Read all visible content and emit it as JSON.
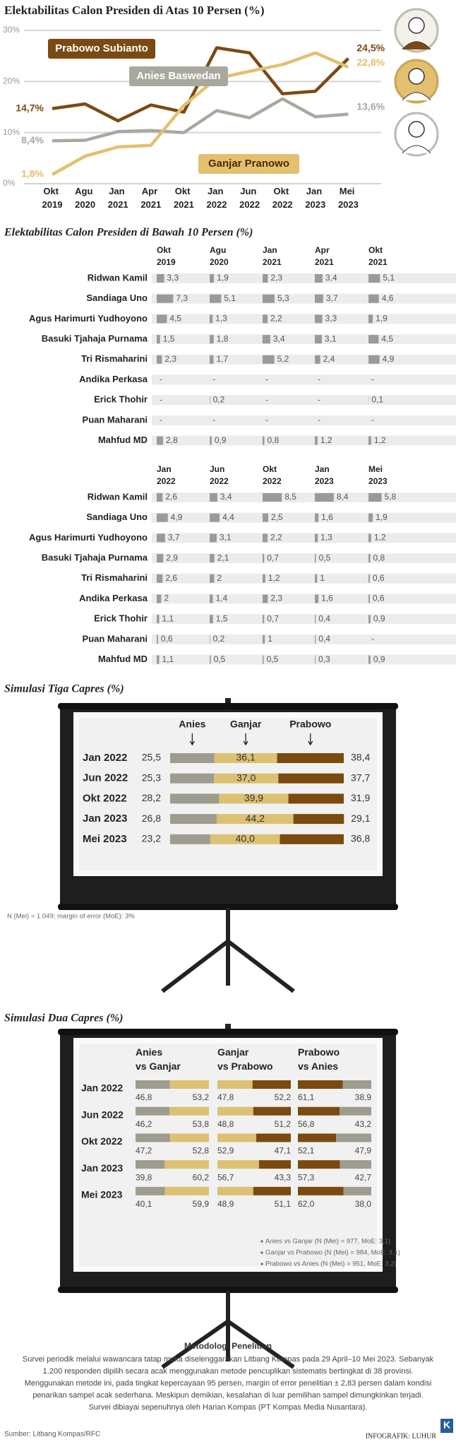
{
  "chart_data": [
    {
      "type": "line",
      "title": "Elektabilitas Calon Presiden di Atas 10 Persen (%)",
      "categories": [
        "Okt 2019",
        "Agu 2020",
        "Jan 2021",
        "Apr 2021",
        "Okt 2021",
        "Jan 2022",
        "Jun 2022",
        "Okt 2022",
        "Jan 2023",
        "Mei 2023"
      ],
      "ylim": [
        0,
        30
      ],
      "yticks": [
        {
          "value": 0,
          "label": "0%"
        },
        {
          "value": 10,
          "label": "10%"
        },
        {
          "value": 20,
          "label": "20%"
        },
        {
          "value": 30,
          "label": "30%"
        }
      ],
      "grid": true,
      "series": [
        {
          "name": "Prabowo Subianto",
          "color": "#7b4a12",
          "values": [
            14.7,
            15.6,
            12.3,
            15.4,
            14.0,
            26.6,
            25.6,
            17.6,
            18.1,
            24.5
          ],
          "value_labels": [
            "14,7%",
            null,
            null,
            null,
            null,
            null,
            null,
            null,
            null,
            "24,5%"
          ]
        },
        {
          "name": "Anies Baswedan",
          "color": "#a9a89f",
          "values": [
            8.4,
            8.5,
            10.2,
            10.4,
            10.0,
            14.3,
            12.9,
            16.6,
            13.1,
            13.6
          ],
          "value_labels": [
            "8,4%",
            null,
            null,
            null,
            null,
            null,
            null,
            null,
            null,
            "13,6%"
          ]
        },
        {
          "name": "Ganjar Pranowo",
          "color": "#e3c070",
          "values": [
            1.8,
            5.4,
            7.2,
            7.5,
            15.3,
            20.6,
            22.0,
            23.3,
            25.6,
            22.8
          ],
          "value_labels": [
            "1,8%",
            null,
            null,
            null,
            null,
            null,
            null,
            null,
            null,
            "22,8%"
          ]
        }
      ]
    },
    {
      "type": "bar_table",
      "title": "Elektabilitas Calon Presiden di Bawah 10 Persen (%)",
      "color": "#9a9a96",
      "categories": [
        "Okt 2019",
        "Agu 2020",
        "Jan 2021",
        "Apr 2021",
        "Okt 2021"
      ],
      "series": [
        {
          "name": "Ridwan Kamil",
          "values": [
            3.3,
            1.9,
            2.3,
            3.4,
            5.1
          ],
          "value_labels": [
            "3,3",
            "1,9",
            "2,3",
            "3,4",
            "5,1"
          ]
        },
        {
          "name": "Sandiaga Uno",
          "values": [
            7.3,
            5.1,
            5.3,
            3.7,
            4.6
          ],
          "value_labels": [
            "7,3",
            "5,1",
            "5,3",
            "3,7",
            "4,6"
          ]
        },
        {
          "name": "Agus Harimurti Yudhoyono",
          "values": [
            4.5,
            1.3,
            2.2,
            3.3,
            1.9
          ],
          "value_labels": [
            "4,5",
            "1,3",
            "2,2",
            "3,3",
            "1,9"
          ]
        },
        {
          "name": "Basuki Tjahaja Purnama",
          "values": [
            1.5,
            1.8,
            3.4,
            3.1,
            4.5
          ],
          "value_labels": [
            "1,5",
            "1,8",
            "3,4",
            "3,1",
            "4,5"
          ]
        },
        {
          "name": "Tri Rismaharini",
          "values": [
            2.3,
            1.7,
            5.2,
            2.4,
            4.9
          ],
          "value_labels": [
            "2,3",
            "1,7",
            "5,2",
            "2,4",
            "4,9"
          ]
        },
        {
          "name": "Andika Perkasa",
          "values": [
            null,
            null,
            null,
            null,
            null
          ],
          "value_labels": [
            "-",
            "-",
            "-",
            "-",
            "-"
          ]
        },
        {
          "name": "Erick Thohir",
          "values": [
            null,
            0.2,
            null,
            null,
            0.1
          ],
          "value_labels": [
            "-",
            "0,2",
            "-",
            "-",
            "0,1"
          ]
        },
        {
          "name": "Puan Maharani",
          "values": [
            null,
            null,
            null,
            null,
            null
          ],
          "value_labels": [
            "-",
            "-",
            "-",
            "-",
            "-"
          ]
        },
        {
          "name": "Mahfud MD",
          "values": [
            2.8,
            0.9,
            0.8,
            1.2,
            1.2
          ],
          "value_labels": [
            "2,8",
            "0,9",
            "0,8",
            "1,2",
            "1,2"
          ]
        }
      ]
    },
    {
      "type": "bar_table",
      "color": "#9a9a96",
      "categories": [
        "Jan 2022",
        "Jun 2022",
        "Okt 2022",
        "Jan 2023",
        "Mei 2023"
      ],
      "series": [
        {
          "name": "Ridwan Kamil",
          "values": [
            2.6,
            3.4,
            8.5,
            8.4,
            5.8
          ],
          "value_labels": [
            "2,6",
            "3,4",
            "8,5",
            "8,4",
            "5,8"
          ]
        },
        {
          "name": "Sandiaga Uno",
          "values": [
            4.9,
            4.4,
            2.5,
            1.6,
            1.9
          ],
          "value_labels": [
            "4,9",
            "4,4",
            "2,5",
            "1,6",
            "1,9"
          ]
        },
        {
          "name": "Agus Harimurti Yudhoyono",
          "values": [
            3.7,
            3.1,
            2.2,
            1.3,
            1.2
          ],
          "value_labels": [
            "3,7",
            "3,1",
            "2,2",
            "1,3",
            "1,2"
          ]
        },
        {
          "name": "Basuki Tjahaja Purnama",
          "values": [
            2.9,
            2.1,
            0.7,
            0.5,
            0.8
          ],
          "value_labels": [
            "2,9",
            "2,1",
            "0,7",
            "0,5",
            "0,8"
          ]
        },
        {
          "name": "Tri Rismaharini",
          "values": [
            2.6,
            2,
            1.2,
            1,
            0.6
          ],
          "value_labels": [
            "2,6",
            "2",
            "1,2",
            "1",
            "0,6"
          ]
        },
        {
          "name": "Andika Perkasa",
          "values": [
            2,
            1.4,
            2.3,
            1.6,
            0.6
          ],
          "value_labels": [
            "2",
            "1,4",
            "2,3",
            "1,6",
            "0,6"
          ]
        },
        {
          "name": "Erick Thohir",
          "values": [
            1.1,
            1.5,
            0.7,
            0.4,
            0.9
          ],
          "value_labels": [
            "1,1",
            "1,5",
            "0,7",
            "0,4",
            "0,9"
          ]
        },
        {
          "name": "Puan Maharani",
          "values": [
            0.6,
            0.2,
            1,
            0.4,
            null
          ],
          "value_labels": [
            "0,6",
            "0,2",
            "1",
            "0,4",
            "-"
          ]
        },
        {
          "name": "Mahfud MD",
          "values": [
            1.1,
            0.5,
            0.5,
            0.3,
            0.9
          ],
          "value_labels": [
            "1,1",
            "0,5",
            "0,5",
            "0,3",
            "0,9"
          ]
        }
      ]
    },
    {
      "type": "stacked_bar",
      "title": "Simulasi Tiga Capres (%)",
      "categories": [
        "Jan 2022",
        "Jun 2022",
        "Okt 2022",
        "Jan 2023",
        "Mei 2023"
      ],
      "series": [
        {
          "name": "Anies",
          "color": "#9e9c8f",
          "values": [
            25.5,
            25.3,
            28.2,
            26.8,
            23.2
          ],
          "value_labels": [
            "25,5",
            "25,3",
            "28,2",
            "26,8",
            "23,2"
          ]
        },
        {
          "name": "Ganjar",
          "color": "#dcc173",
          "values": [
            36.1,
            37.0,
            39.9,
            44.2,
            40.0
          ],
          "value_labels": [
            "36,1",
            "37,0",
            "39,9",
            "44,2",
            "40,0"
          ]
        },
        {
          "name": "Prabowo",
          "color": "#7a4a0e",
          "values": [
            38.4,
            37.7,
            31.9,
            29.1,
            36.8
          ],
          "value_labels": [
            "38,4",
            "37,7",
            "31,9",
            "29,1",
            "36,8"
          ]
        }
      ],
      "note": "N (Mei) = 1.049; margin of error (MoE): 3%"
    },
    {
      "type": "paired_bar",
      "title": "Simulasi Dua Capres (%)",
      "categories": [
        "Jan 2022",
        "Jun 2022",
        "Okt 2022",
        "Jan 2023",
        "Mei 2023"
      ],
      "groups": [
        {
          "name": "Anies vs Ganjar",
          "series": [
            {
              "color": "#9e9c8f",
              "values": [
                46.8,
                46.2,
                47.2,
                39.8,
                40.1
              ],
              "value_labels": [
                "46,8",
                "46,2",
                "47,2",
                "39,8",
                "40,1"
              ]
            },
            {
              "color": "#dcc173",
              "values": [
                53.2,
                53.8,
                52.8,
                60.2,
                59.9
              ],
              "value_labels": [
                "53,2",
                "53,8",
                "52,8",
                "60,2",
                "59,9"
              ]
            }
          ]
        },
        {
          "name": "Ganjar vs Prabowo",
          "series": [
            {
              "color": "#dcc173",
              "values": [
                47.8,
                48.8,
                52.9,
                56.7,
                48.9
              ],
              "value_labels": [
                "47,8",
                "48,8",
                "52,9",
                "56,7",
                "48,9"
              ]
            },
            {
              "color": "#7a4a0e",
              "values": [
                52.2,
                51.2,
                47.1,
                43.3,
                51.1
              ],
              "value_labels": [
                "52,2",
                "51,2",
                "47,1",
                "43,3",
                "51,1"
              ]
            }
          ]
        },
        {
          "name": "Prabowo vs Anies",
          "series": [
            {
              "color": "#7a4a0e",
              "values": [
                61.1,
                56.8,
                52.1,
                57.3,
                62.0
              ],
              "value_labels": [
                "61,1",
                "56,8",
                "52,1",
                "57,3",
                "62,0"
              ]
            },
            {
              "color": "#9e9c8f",
              "values": [
                38.9,
                43.2,
                47.9,
                42.7,
                38.0
              ],
              "value_labels": [
                "38,9",
                "43,2",
                "47,9",
                "42,7",
                "38,0"
              ]
            }
          ]
        }
      ],
      "notes": [
        "Anies vs Ganjar (N (Mei) = 977, MoE: 3,1)",
        "Ganjar vs Prabowo (N (Mei) = 984, MoE: 3,1)",
        "Prabowo vs Anies (N (Mei) = 951, MoE: 3,2)"
      ]
    }
  ],
  "methodology": {
    "title": "Metodologi Penelitian",
    "text": "Survei periodik melalui wawancara tatap muka diselenggarakan Litbang Kompas pada 29 April–10 Mei 2023. Sebanyak 1.200 responden dipilih secara acak menggunakan metode pencuplikan sistematis bertingkat di 38 provinsi. Menggunakan metode ini, pada tingkat kepercayaan 95 persen, margin of error penelitian ± 2,83 persen dalam kondisi penarikan sampel acak sederhana. Meskipun demikian, kesalahan di luar pemilihan sampel dimungkinkan terjadi. Survei dibiayai sepenuhnya oleh Harian Kompas (PT Kompas Media Nusantara)."
  },
  "source": "Sumber: Litbang Kompas/RFC",
  "credit": "INFOGRAFIK: LUHUR",
  "logo_text": "K"
}
